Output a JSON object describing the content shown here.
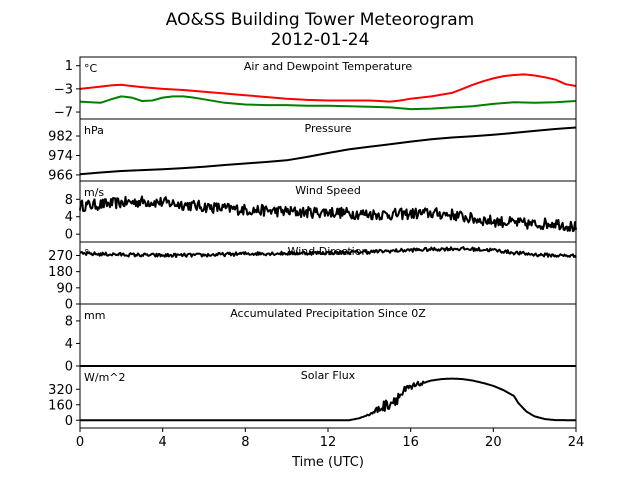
{
  "chart_data": {
    "type": "line",
    "title": "AO&SS Building Tower Meteorogram",
    "subtitle": "2012-01-24",
    "xlabel": "Time (UTC)",
    "xlim": [
      0,
      24
    ],
    "xticks": [
      0,
      4,
      8,
      12,
      16,
      20,
      24
    ],
    "panels": [
      {
        "title": "Air and Dewpoint Temperature",
        "unit": "°C",
        "ylim": [
          -8.2,
          2.5
        ],
        "yticks": [
          1,
          -3,
          -7
        ],
        "ytick_labels": [
          "1",
          "−3",
          "−7"
        ],
        "series": [
          {
            "color": "#ff0000",
            "x": [
              0,
              0.5,
              1,
              1.5,
              2,
              2.5,
              3,
              4,
              5,
              6,
              7,
              8,
              9,
              10,
              11,
              12,
              13,
              14,
              15,
              15.5,
              16,
              17,
              18,
              18.5,
              19,
              19.5,
              20,
              20.5,
              21,
              21.5,
              22,
              22.5,
              23,
              23.5,
              24
            ],
            "y": [
              -3.0,
              -2.8,
              -2.6,
              -2.4,
              -2.3,
              -2.5,
              -2.7,
              -3.0,
              -3.2,
              -3.5,
              -3.8,
              -4.1,
              -4.4,
              -4.7,
              -4.9,
              -5.0,
              -5.0,
              -5.0,
              -5.2,
              -5.0,
              -4.7,
              -4.3,
              -3.7,
              -3.0,
              -2.3,
              -1.7,
              -1.2,
              -0.8,
              -0.6,
              -0.5,
              -0.7,
              -1.0,
              -1.4,
              -2.2,
              -2.5
            ]
          },
          {
            "color": "#008000",
            "x": [
              0,
              0.5,
              1,
              1.5,
              2,
              2.5,
              3,
              3.5,
              4,
              4.5,
              5,
              5.5,
              6,
              7,
              8,
              9,
              10,
              11,
              12,
              13,
              14,
              15,
              16,
              17,
              18,
              19,
              20,
              21,
              22,
              23,
              24
            ],
            "y": [
              -5.2,
              -5.3,
              -5.4,
              -4.8,
              -4.3,
              -4.5,
              -5.1,
              -5.0,
              -4.5,
              -4.3,
              -4.3,
              -4.5,
              -4.8,
              -5.4,
              -5.7,
              -5.8,
              -5.8,
              -5.9,
              -5.9,
              -6.0,
              -6.1,
              -6.2,
              -6.5,
              -6.4,
              -6.2,
              -6.0,
              -5.6,
              -5.3,
              -5.4,
              -5.3,
              -5.1
            ]
          }
        ]
      },
      {
        "title": "Pressure",
        "unit": "hPa",
        "ylim": [
          963.5,
          989
        ],
        "yticks": [
          982,
          974,
          966
        ],
        "ytick_labels": [
          "982",
          "974",
          "966"
        ],
        "series": [
          {
            "color": "#000000",
            "x": [
              0,
              1,
              2,
              3,
              4,
              5,
              6,
              7,
              8,
              9,
              10,
              11,
              12,
              13,
              14,
              15,
              16,
              17,
              18,
              19,
              20,
              21,
              22,
              23,
              24
            ],
            "y": [
              966.3,
              967.0,
              967.6,
              968.0,
              968.3,
              968.8,
              969.4,
              970.1,
              970.7,
              971.3,
              972.0,
              973.4,
              975.0,
              976.5,
              977.6,
              978.6,
              979.7,
              980.7,
              981.4,
              981.9,
              982.5,
              983.3,
              984.1,
              984.9,
              985.5
            ]
          }
        ]
      },
      {
        "title": "Wind Speed",
        "unit": "m/s",
        "ylim": [
          -1.8,
          12.2
        ],
        "yticks": [
          8,
          4,
          0
        ],
        "ytick_labels": [
          "8",
          "4",
          "0"
        ],
        "noise": 1.3,
        "series": [
          {
            "color": "#000000",
            "x": [
              0,
              1,
              2,
              3,
              4,
              5,
              6,
              7,
              8,
              9,
              10,
              11,
              12,
              13,
              14,
              15,
              16,
              17,
              18,
              18.5,
              19,
              20,
              21,
              22,
              23,
              24
            ],
            "y": [
              6.5,
              6.8,
              7.2,
              7.5,
              7.3,
              6.8,
              6.3,
              5.9,
              5.6,
              5.4,
              5.2,
              5.0,
              5.1,
              4.8,
              4.6,
              4.5,
              4.7,
              4.8,
              4.5,
              4.0,
              3.5,
              3.0,
              2.6,
              2.2,
              2.6,
              1.5
            ]
          }
        ]
      },
      {
        "title": "Wind Direction",
        "unit": "°",
        "ylim": [
          0,
          345
        ],
        "yticks": [
          270,
          180,
          90,
          0
        ],
        "ytick_labels": [
          "270",
          "180",
          "90",
          "0"
        ],
        "noise": 10,
        "series": [
          {
            "color": "#000000",
            "x": [
              0,
              2,
              4,
              6,
              8,
              10,
              12,
              14,
              16,
              18,
              19,
              20,
              21,
              22,
              23,
              24
            ],
            "y": [
              280,
              275,
              270,
              272,
              280,
              282,
              285,
              290,
              300,
              308,
              305,
              300,
              285,
              275,
              270,
              268
            ]
          }
        ]
      },
      {
        "title": "Accumulated Precipitation Since 0Z",
        "unit": "mm",
        "ylim": [
          0,
          11
        ],
        "yticks": [
          8,
          4,
          0
        ],
        "ytick_labels": [
          "8",
          "4",
          "0"
        ],
        "series": [
          {
            "color": "#000000",
            "x": [
              0,
              24
            ],
            "y": [
              0,
              0
            ]
          }
        ]
      },
      {
        "title": "Solar Flux",
        "unit": "W/m^2",
        "ylim": [
          -80,
          560
        ],
        "yticks": [
          320,
          160,
          0
        ],
        "ytick_labels": [
          "320",
          "160",
          "0"
        ],
        "series": [
          {
            "color": "#000000",
            "x": [
              0,
              13,
              13.5,
              14,
              14.5,
              15,
              15.5,
              16,
              16.5,
              17,
              17.5,
              18,
              18.5,
              19,
              19.5,
              20,
              20.5,
              21,
              21.2,
              21.6,
              22,
              22.5,
              23,
              24
            ],
            "y": [
              0,
              0,
              20,
              60,
              120,
              180,
              260,
              330,
              380,
              410,
              425,
              430,
              425,
              410,
              385,
              355,
              310,
              250,
              180,
              90,
              40,
              12,
              2,
              0
            ],
            "noise_range": [
              13.8,
              16.8
            ],
            "noise": 70
          }
        ]
      }
    ]
  }
}
